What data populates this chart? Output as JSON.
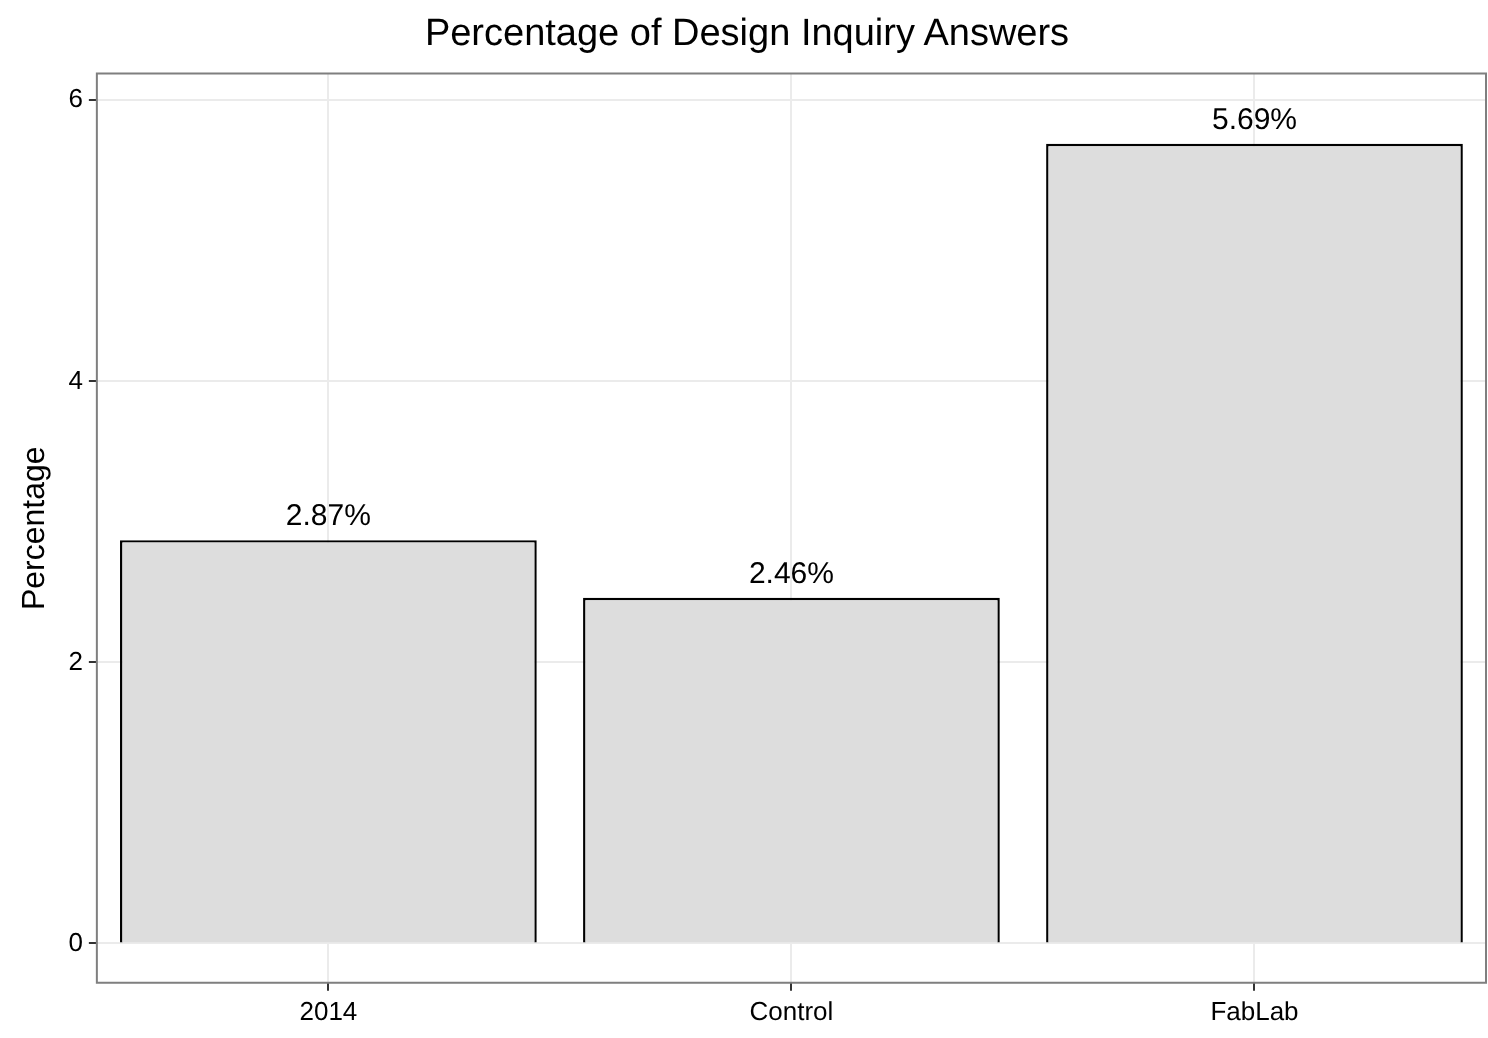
{
  "chart_data": {
    "type": "bar",
    "title": "Percentage of Design Inquiry Answers",
    "ylabel": "Percentage",
    "categories": [
      "2014",
      "Control",
      "FabLab"
    ],
    "values": [
      2.87,
      2.46,
      5.69
    ],
    "value_labels": [
      "2.87%",
      "2.46%",
      "5.69%"
    ],
    "color": "#dddddd",
    "ylim": [
      -0.28,
      6.19
    ],
    "yticks": [
      0,
      2,
      4,
      6
    ],
    "grid": true
  }
}
